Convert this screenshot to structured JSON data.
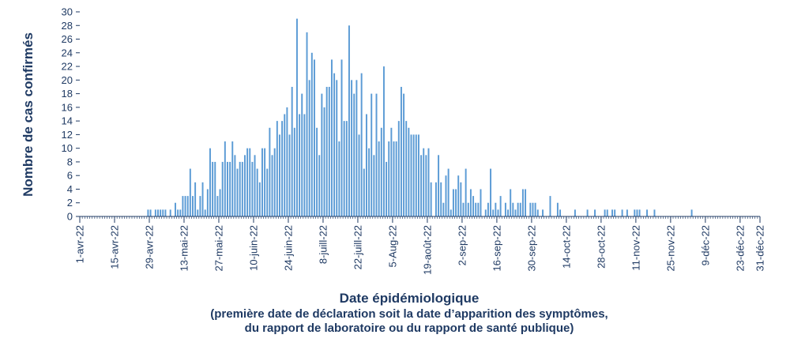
{
  "chart_data": {
    "type": "bar",
    "title": "",
    "xlabel": "Date épidémiologique",
    "xlabel_note_line1": "(première date de déclaration soit la date d’apparition des symptômes,",
    "xlabel_note_line2": "du rapport de laboratoire ou du rapport de santé publique)",
    "ylabel": "Nombre de cas confirmés",
    "ylim": [
      0,
      30
    ],
    "yticks": [
      0,
      2,
      4,
      6,
      8,
      10,
      12,
      14,
      16,
      18,
      20,
      22,
      24,
      26,
      28,
      30
    ],
    "xlim": [
      "2022-04-01",
      "2022-12-31"
    ],
    "grid": false,
    "bar_color": "#5b9bd5",
    "axis_color": "#1f3a63",
    "x_tick_labels": [
      {
        "date": "2022-04-01",
        "label": "1-avr-22"
      },
      {
        "date": "2022-04-15",
        "label": "15-avr-22"
      },
      {
        "date": "2022-04-29",
        "label": "29-avr-22"
      },
      {
        "date": "2022-05-13",
        "label": "13-mai-22"
      },
      {
        "date": "2022-05-27",
        "label": "27-mai-22"
      },
      {
        "date": "2022-06-10",
        "label": "10-juin-22"
      },
      {
        "date": "2022-06-24",
        "label": "24-juin-22"
      },
      {
        "date": "2022-07-08",
        "label": "8-juill-22"
      },
      {
        "date": "2022-07-22",
        "label": "22-juill-22"
      },
      {
        "date": "2022-08-05",
        "label": "5-Aug-22"
      },
      {
        "date": "2022-08-19",
        "label": "19-août-22"
      },
      {
        "date": "2022-09-02",
        "label": "2-sep-22"
      },
      {
        "date": "2022-09-16",
        "label": "16-sep-22"
      },
      {
        "date": "2022-09-30",
        "label": "30-sep-22"
      },
      {
        "date": "2022-10-14",
        "label": "14-oct-22"
      },
      {
        "date": "2022-10-28",
        "label": "28-oct-22"
      },
      {
        "date": "2022-11-11",
        "label": "11-nov-22"
      },
      {
        "date": "2022-11-25",
        "label": "25-nov-22"
      },
      {
        "date": "2022-12-09",
        "label": "9-déc-22"
      },
      {
        "date": "2022-12-23",
        "label": "23-déc-22"
      },
      {
        "date": "2022-12-31",
        "label": "31-déc-22"
      }
    ],
    "points": [
      [
        "2022-04-28",
        1
      ],
      [
        "2022-04-29",
        1
      ],
      [
        "2022-05-01",
        1
      ],
      [
        "2022-05-02",
        1
      ],
      [
        "2022-05-03",
        1
      ],
      [
        "2022-05-04",
        1
      ],
      [
        "2022-05-05",
        1
      ],
      [
        "2022-05-07",
        1
      ],
      [
        "2022-05-09",
        2
      ],
      [
        "2022-05-10",
        1
      ],
      [
        "2022-05-11",
        1
      ],
      [
        "2022-05-12",
        3
      ],
      [
        "2022-05-13",
        3
      ],
      [
        "2022-05-14",
        3
      ],
      [
        "2022-05-15",
        7
      ],
      [
        "2022-05-16",
        3
      ],
      [
        "2022-05-17",
        5
      ],
      [
        "2022-05-18",
        1
      ],
      [
        "2022-05-19",
        3
      ],
      [
        "2022-05-20",
        5
      ],
      [
        "2022-05-21",
        1
      ],
      [
        "2022-05-22",
        4
      ],
      [
        "2022-05-23",
        10
      ],
      [
        "2022-05-24",
        8
      ],
      [
        "2022-05-25",
        8
      ],
      [
        "2022-05-26",
        3
      ],
      [
        "2022-05-27",
        4
      ],
      [
        "2022-05-28",
        8
      ],
      [
        "2022-05-29",
        11
      ],
      [
        "2022-05-30",
        8
      ],
      [
        "2022-05-31",
        8
      ],
      [
        "2022-06-01",
        11
      ],
      [
        "2022-06-02",
        9
      ],
      [
        "2022-06-03",
        7
      ],
      [
        "2022-06-04",
        8
      ],
      [
        "2022-06-05",
        8
      ],
      [
        "2022-06-06",
        9
      ],
      [
        "2022-06-07",
        10
      ],
      [
        "2022-06-08",
        10
      ],
      [
        "2022-06-09",
        8
      ],
      [
        "2022-06-10",
        9
      ],
      [
        "2022-06-11",
        7
      ],
      [
        "2022-06-12",
        5
      ],
      [
        "2022-06-13",
        10
      ],
      [
        "2022-06-14",
        10
      ],
      [
        "2022-06-15",
        7
      ],
      [
        "2022-06-16",
        13
      ],
      [
        "2022-06-17",
        9
      ],
      [
        "2022-06-18",
        10
      ],
      [
        "2022-06-19",
        14
      ],
      [
        "2022-06-20",
        12
      ],
      [
        "2022-06-21",
        14
      ],
      [
        "2022-06-22",
        15
      ],
      [
        "2022-06-23",
        16
      ],
      [
        "2022-06-24",
        12
      ],
      [
        "2022-06-25",
        19
      ],
      [
        "2022-06-26",
        13
      ],
      [
        "2022-06-27",
        29
      ],
      [
        "2022-06-28",
        15
      ],
      [
        "2022-06-29",
        18
      ],
      [
        "2022-06-30",
        15
      ],
      [
        "2022-07-01",
        27
      ],
      [
        "2022-07-02",
        20
      ],
      [
        "2022-07-03",
        24
      ],
      [
        "2022-07-04",
        23
      ],
      [
        "2022-07-05",
        13
      ],
      [
        "2022-07-06",
        9
      ],
      [
        "2022-07-07",
        18
      ],
      [
        "2022-07-08",
        16
      ],
      [
        "2022-07-09",
        19
      ],
      [
        "2022-07-10",
        19
      ],
      [
        "2022-07-11",
        23
      ],
      [
        "2022-07-12",
        21
      ],
      [
        "2022-07-13",
        20
      ],
      [
        "2022-07-14",
        11
      ],
      [
        "2022-07-15",
        23
      ],
      [
        "2022-07-16",
        14
      ],
      [
        "2022-07-17",
        14
      ],
      [
        "2022-07-18",
        28
      ],
      [
        "2022-07-19",
        20
      ],
      [
        "2022-07-20",
        18
      ],
      [
        "2022-07-21",
        20
      ],
      [
        "2022-07-22",
        12
      ],
      [
        "2022-07-23",
        21
      ],
      [
        "2022-07-24",
        7
      ],
      [
        "2022-07-25",
        15
      ],
      [
        "2022-07-26",
        10
      ],
      [
        "2022-07-27",
        18
      ],
      [
        "2022-07-28",
        9
      ],
      [
        "2022-07-29",
        18
      ],
      [
        "2022-07-30",
        11
      ],
      [
        "2022-07-31",
        13
      ],
      [
        "2022-08-01",
        22
      ],
      [
        "2022-08-02",
        8
      ],
      [
        "2022-08-03",
        11
      ],
      [
        "2022-08-04",
        13
      ],
      [
        "2022-08-05",
        11
      ],
      [
        "2022-08-06",
        11
      ],
      [
        "2022-08-07",
        14
      ],
      [
        "2022-08-08",
        19
      ],
      [
        "2022-08-09",
        18
      ],
      [
        "2022-08-10",
        14
      ],
      [
        "2022-08-11",
        13
      ],
      [
        "2022-08-12",
        12
      ],
      [
        "2022-08-13",
        12
      ],
      [
        "2022-08-14",
        12
      ],
      [
        "2022-08-15",
        12
      ],
      [
        "2022-08-16",
        9
      ],
      [
        "2022-08-17",
        10
      ],
      [
        "2022-08-18",
        9
      ],
      [
        "2022-08-19",
        10
      ],
      [
        "2022-08-20",
        5
      ],
      [
        "2022-08-22",
        5
      ],
      [
        "2022-08-23",
        9
      ],
      [
        "2022-08-24",
        5
      ],
      [
        "2022-08-25",
        2
      ],
      [
        "2022-08-26",
        6
      ],
      [
        "2022-08-27",
        7
      ],
      [
        "2022-08-28",
        1
      ],
      [
        "2022-08-29",
        4
      ],
      [
        "2022-08-30",
        4
      ],
      [
        "2022-08-31",
        6
      ],
      [
        "2022-09-01",
        5
      ],
      [
        "2022-09-02",
        2
      ],
      [
        "2022-09-03",
        7
      ],
      [
        "2022-09-04",
        2
      ],
      [
        "2022-09-05",
        4
      ],
      [
        "2022-09-06",
        3
      ],
      [
        "2022-09-07",
        2
      ],
      [
        "2022-09-08",
        2
      ],
      [
        "2022-09-09",
        4
      ],
      [
        "2022-09-11",
        1
      ],
      [
        "2022-09-12",
        2
      ],
      [
        "2022-09-13",
        7
      ],
      [
        "2022-09-14",
        1
      ],
      [
        "2022-09-15",
        2
      ],
      [
        "2022-09-16",
        1
      ],
      [
        "2022-09-17",
        3
      ],
      [
        "2022-09-19",
        2
      ],
      [
        "2022-09-20",
        1
      ],
      [
        "2022-09-21",
        4
      ],
      [
        "2022-09-22",
        2
      ],
      [
        "2022-09-23",
        1
      ],
      [
        "2022-09-24",
        2
      ],
      [
        "2022-09-25",
        2
      ],
      [
        "2022-09-26",
        4
      ],
      [
        "2022-09-27",
        4
      ],
      [
        "2022-09-29",
        2
      ],
      [
        "2022-09-30",
        2
      ],
      [
        "2022-10-01",
        2
      ],
      [
        "2022-10-02",
        1
      ],
      [
        "2022-10-04",
        1
      ],
      [
        "2022-10-07",
        3
      ],
      [
        "2022-10-10",
        2
      ],
      [
        "2022-10-11",
        1
      ],
      [
        "2022-10-17",
        1
      ],
      [
        "2022-10-22",
        1
      ],
      [
        "2022-10-25",
        1
      ],
      [
        "2022-10-29",
        1
      ],
      [
        "2022-10-30",
        1
      ],
      [
        "2022-11-01",
        1
      ],
      [
        "2022-11-02",
        1
      ],
      [
        "2022-11-05",
        1
      ],
      [
        "2022-11-07",
        1
      ],
      [
        "2022-11-10",
        1
      ],
      [
        "2022-11-11",
        1
      ],
      [
        "2022-11-12",
        1
      ],
      [
        "2022-11-15",
        1
      ],
      [
        "2022-11-18",
        1
      ],
      [
        "2022-12-03",
        1
      ]
    ]
  }
}
